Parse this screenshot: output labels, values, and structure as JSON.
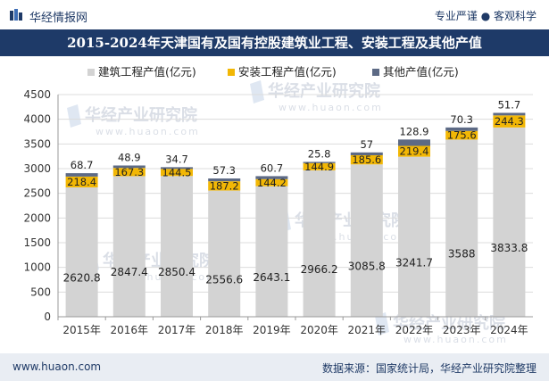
{
  "header": {
    "brand": "华经情报网",
    "tagline": "专业严谨 ● 客观科学"
  },
  "watermarks": [
    {
      "cn": "华经产业研究院",
      "url": "www.huaon.com"
    },
    {
      "cn": "华经产业研究院",
      "url": "www.huaon.com"
    },
    {
      "cn": "华经产业研究院",
      "url": "www.huaon.com"
    },
    {
      "cn": "华经产业研究院",
      "url": "www.huaon.com"
    },
    {
      "cn": "华经产业研究院",
      "url": "www.huaon.com"
    }
  ],
  "chart_data": {
    "type": "bar",
    "stacked": true,
    "title": "2015-2024年天津国有及国有控股建筑业工程、安装工程及其他产值",
    "categories": [
      "2015年",
      "2016年",
      "2017年",
      "2018年",
      "2019年",
      "2020年",
      "2021年",
      "2022年",
      "2023年",
      "2024年"
    ],
    "series": [
      {
        "name": "建筑工程产值(亿元)",
        "color": "#d3d3d3",
        "values": [
          2620.8,
          2847.4,
          2850.4,
          2556.6,
          2643.1,
          2966.2,
          3085.8,
          3241.7,
          3588,
          3833.8
        ]
      },
      {
        "name": "安装工程产值(亿元)",
        "color": "#f2b705",
        "values": [
          218.4,
          167.3,
          144.5,
          187.2,
          144.2,
          144.9,
          185.6,
          219.4,
          175.6,
          244.3
        ]
      },
      {
        "name": "其他产值(亿元)",
        "color": "#5d6a85",
        "values": [
          68.7,
          48.9,
          34.7,
          57.3,
          60.7,
          25.8,
          57,
          128.9,
          70.3,
          51.7
        ]
      }
    ],
    "ylim": [
      0,
      4500
    ],
    "yticks": [
      0,
      500,
      1000,
      1500,
      2000,
      2500,
      3000,
      3500,
      4000,
      4500
    ],
    "legend_position": "top"
  },
  "footer": {
    "website": "www.huaon.com",
    "source": "数据来源：国家统计局，华经产业研究院整理"
  }
}
